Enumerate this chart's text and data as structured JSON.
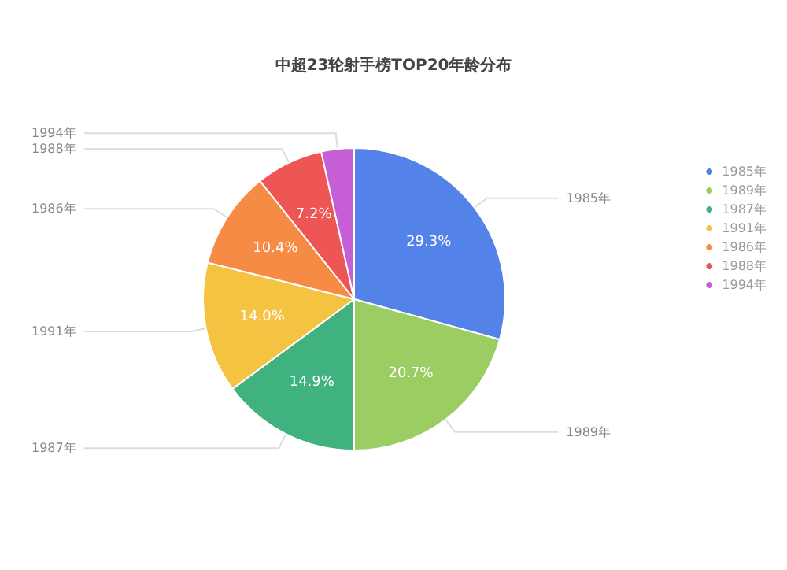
{
  "chart_data": {
    "type": "pie",
    "title": "中超23轮射手榜TOP20年龄分布",
    "categories": [
      "1985年",
      "1989年",
      "1987年",
      "1991年",
      "1986年",
      "1988年",
      "1994年"
    ],
    "values": [
      29.3,
      20.7,
      14.9,
      14.0,
      10.4,
      7.2,
      3.5
    ],
    "value_labels": [
      "29.3%",
      "20.7%",
      "14.9%",
      "14.0%",
      "10.4%",
      "7.2%",
      null
    ],
    "colors": [
      "#5383e8",
      "#9bcd63",
      "#3fb27f",
      "#f5c342",
      "#f68b45",
      "#ee5555",
      "#c65fd6"
    ],
    "legend": "top right"
  }
}
